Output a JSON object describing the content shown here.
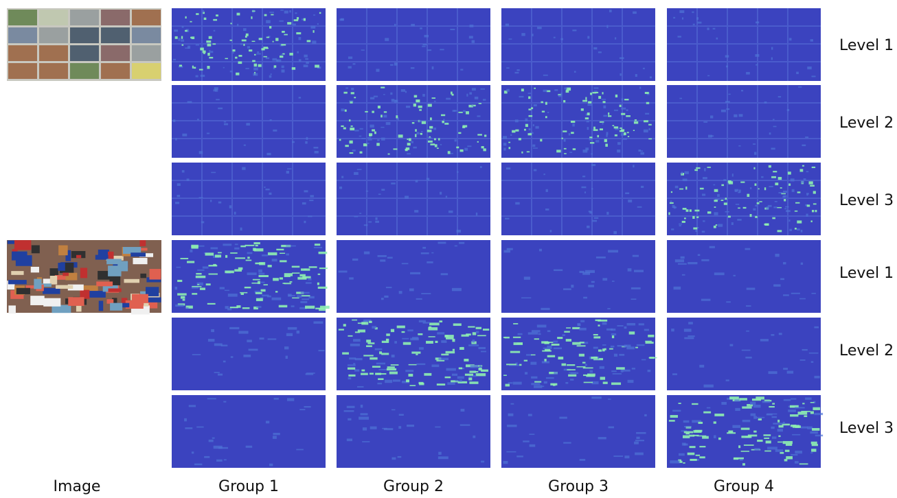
{
  "columns": [
    "Image",
    "Group 1",
    "Group 2",
    "Group 3",
    "Group 4"
  ],
  "row_labels": [
    "Level 1",
    "Level 2",
    "Level 3",
    "Level 1",
    "Level 2",
    "Level 3"
  ]
}
